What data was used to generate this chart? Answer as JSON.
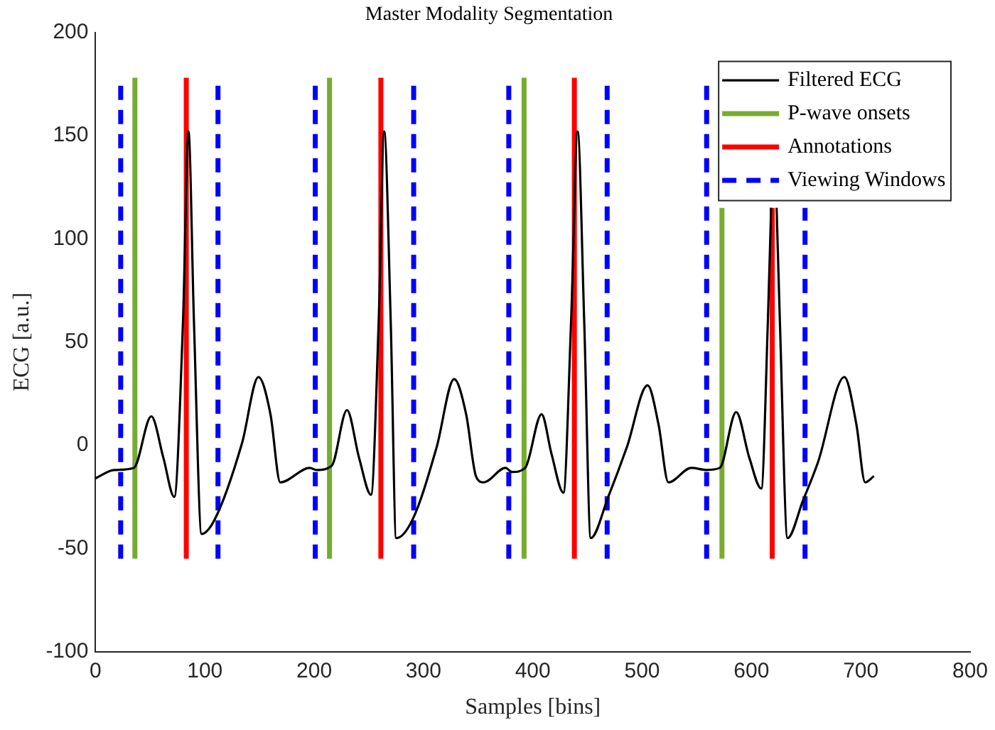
{
  "chart_data": {
    "type": "line",
    "title": "Master Modality Segmentation",
    "xlabel": "Samples [bins]",
    "ylabel": "ECG [a.u.]",
    "xlim": [
      0,
      800
    ],
    "xticks": [
      0,
      100,
      200,
      300,
      400,
      500,
      600,
      700,
      800
    ],
    "ylim": [
      -100,
      200
    ],
    "yticks": [
      -100,
      -50,
      0,
      50,
      100,
      150,
      200
    ],
    "grid": false,
    "legend": "top right",
    "marker": "none",
    "series": [
      {
        "name": "Filtered ECG",
        "color": "#000000",
        "line_style": "solid",
        "x": [
          0,
          17,
          35,
          51,
          62,
          72,
          80,
          85,
          90,
          97,
          109,
          134,
          149,
          160,
          169,
          196,
          202,
          216,
          230,
          241,
          252,
          259,
          264,
          270,
          275,
          290,
          312,
          328,
          339,
          348,
          355,
          375,
          381,
          393,
          408,
          417,
          428,
          435,
          441,
          447,
          453,
          469,
          486,
          505,
          515,
          524,
          545,
          559,
          571,
          586,
          598,
          609,
          615,
          618,
          null,
          623,
          626,
          633,
          647,
          661,
          685,
          696,
          704,
          712
        ],
        "values": [
          -16,
          -12,
          -11,
          14,
          -6,
          -25,
          60,
          152,
          60,
          -43,
          -36,
          1,
          33,
          15,
          -18,
          -11,
          -12,
          -10,
          17,
          -6,
          -24,
          60,
          152,
          60,
          -45,
          -36,
          -1,
          32,
          15,
          -15,
          -18,
          -11,
          -13,
          -11,
          15,
          -4,
          -23,
          60,
          152,
          60,
          -45,
          -25,
          -1,
          29,
          10,
          -18,
          -11,
          -12,
          -11,
          16,
          -6,
          -21,
          60,
          115,
          null,
          115,
          60,
          -45,
          -27,
          -8,
          33,
          10,
          -18,
          -15
        ]
      },
      {
        "name": "P-wave onsets",
        "color": "#77ac30",
        "line_style": "solid",
        "x": [
          36,
          36,
          null,
          214,
          214,
          null,
          392,
          392,
          null,
          573,
          573
        ],
        "values": [
          -55,
          178,
          null,
          -55,
          178,
          null,
          -55,
          178,
          null,
          -55,
          115
        ]
      },
      {
        "name": "Annotations",
        "color": "#ff0000",
        "line_style": "solid",
        "x": [
          83,
          83,
          null,
          261,
          261,
          null,
          438,
          438,
          null,
          619,
          619
        ],
        "values": [
          -55,
          178,
          null,
          -55,
          178,
          null,
          -55,
          178,
          null,
          -55,
          115
        ]
      },
      {
        "name": "Viewing Windows",
        "color": "#0000ff",
        "line_style": "dashed",
        "x": [
          23,
          23,
          null,
          112,
          112,
          null,
          201,
          201,
          null,
          291,
          291,
          null,
          378,
          378,
          null,
          468,
          468,
          null,
          559,
          559,
          null,
          649,
          649
        ],
        "values": [
          -55,
          178,
          null,
          -55,
          178,
          null,
          -55,
          178,
          null,
          -55,
          178,
          null,
          -55,
          178,
          null,
          -55,
          178,
          null,
          -55,
          178,
          null,
          -55,
          115
        ]
      }
    ]
  }
}
